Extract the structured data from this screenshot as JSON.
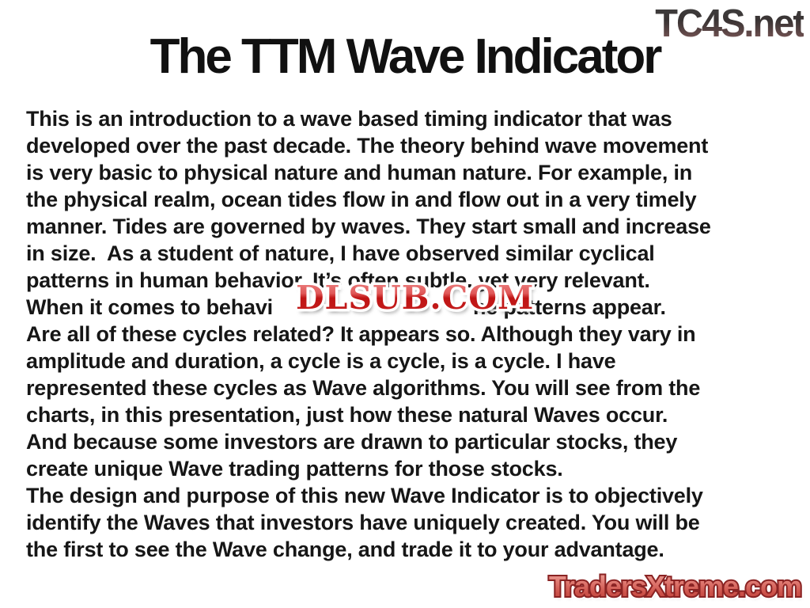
{
  "watermarks": {
    "top_right": "TC4S.net",
    "middle": "DLSUB.COM",
    "bottom_right": "TradersXtreme.com"
  },
  "slide": {
    "title": "The TTM Wave Indicator",
    "lines_before": [
      "This is an introduction to a wave based timing indicator that was",
      "developed over the past decade. The theory behind wave movement",
      "is very basic to physical nature and human nature. For example, in",
      "the physical realm, ocean tides flow in and flow out in a very timely",
      "manner. Tides are governed by waves. They start small and increase",
      "in size.  As a student of nature, I have observed similar cyclical",
      "patterns in human behavior. It’s often subtle, yet very relevant."
    ],
    "interrupted_line": {
      "pre": "When it comes to behavi",
      "post": "ne patterns appear."
    },
    "lines_after": [
      "Are all of these cycles related? It appears so. Although they vary in",
      "amplitude and duration, a cycle is a cycle, is a cycle. I have",
      "represented these cycles as Wave algorithms. You will see from the",
      "charts, in this presentation, just how these natural Waves occur.",
      "And because some investors are drawn to particular stocks, they",
      "create unique Wave trading patterns for those stocks.",
      "The design and purpose of this new Wave Indicator is to objectively",
      "identify the Waves that investors have uniquely created. You will be",
      "the first to see the Wave change, and trade it to your advantage."
    ]
  },
  "colors": {
    "body_text": "#161616",
    "dlsub_red": "#c2191c",
    "tradersxtreme_red": "#cc5149",
    "tc4s_gradient_top": "#3a3434",
    "tc4s_gradient_bottom": "#8a5f5f"
  }
}
